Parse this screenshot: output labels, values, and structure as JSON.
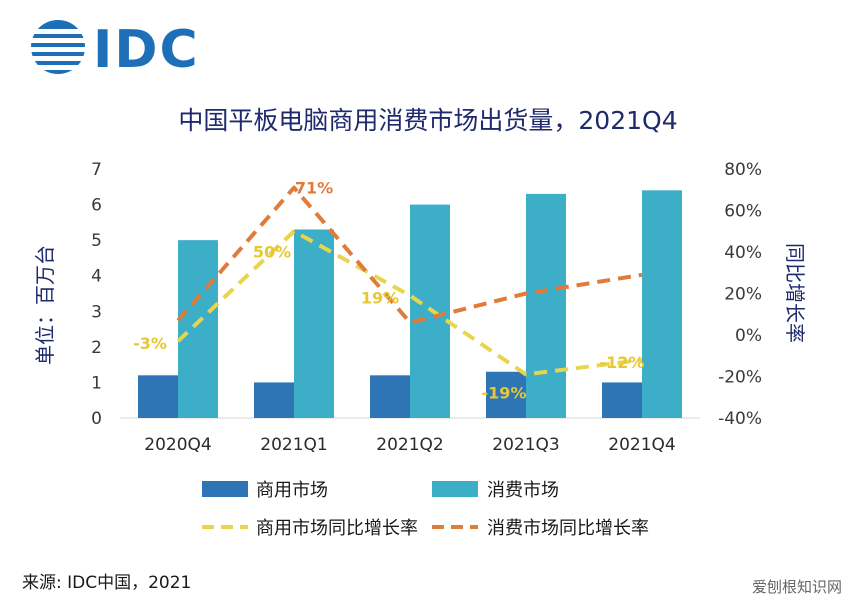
{
  "logo": {
    "text": "IDC"
  },
  "footer": {
    "source": "来源: IDC中国，2021",
    "watermark": "爱刨根知识网"
  },
  "chart_data": {
    "type": "bar",
    "title": "中国平板电脑商用消费市场出货量，2021Q4",
    "ylabel": "单位：百万台",
    "y2label": "同比增长率",
    "categories": [
      "2020Q4",
      "2021Q1",
      "2021Q2",
      "2021Q3",
      "2021Q4"
    ],
    "ylim": [
      0,
      7
    ],
    "yticks": [
      0,
      1,
      2,
      3,
      4,
      5,
      6,
      7
    ],
    "y2lim": [
      -40,
      80
    ],
    "y2ticks": [
      -40,
      -20,
      0,
      20,
      40,
      60,
      80
    ],
    "y2tick_labels": [
      "-40%",
      "-20%",
      "0%",
      "20%",
      "40%",
      "60%",
      "80%"
    ],
    "grid": false,
    "legend_position": "bottom",
    "series": [
      {
        "name": "商用市场",
        "type": "bar",
        "axis": "left",
        "color": "#2e75b6",
        "values": [
          1.2,
          1.0,
          1.2,
          1.3,
          1.0
        ]
      },
      {
        "name": "消费市场",
        "type": "bar",
        "axis": "left",
        "color": "#3caec8",
        "values": [
          5.0,
          5.3,
          6.0,
          6.3,
          6.4
        ]
      },
      {
        "name": "商用市场同比增长率",
        "type": "line",
        "dashed": true,
        "axis": "right",
        "color": "#e8d44d",
        "values": [
          -3,
          50,
          19,
          -19,
          -12
        ],
        "labels": [
          "-3%",
          "50%",
          "19%",
          "-19%",
          "-12%"
        ]
      },
      {
        "name": "消费市场同比增长率",
        "type": "line",
        "dashed": true,
        "axis": "right",
        "color": "#e07b39",
        "values": [
          7,
          71,
          6,
          20,
          29
        ],
        "labels": [
          "",
          "71%",
          "",
          "",
          ""
        ]
      }
    ]
  }
}
